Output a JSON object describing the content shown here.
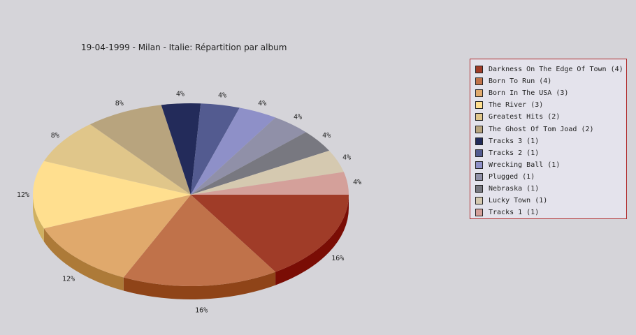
{
  "chart_data": {
    "type": "pie",
    "title": "19-04-1999 - Milan - Italie:  Répartition par album",
    "slices": [
      {
        "label": "Darkness On The Edge Of Town",
        "value": 4,
        "percent_label": "16%",
        "color": "#a03c28",
        "side_color": "#7a0d05"
      },
      {
        "label": "Born To Run",
        "value": 4,
        "percent_label": "16%",
        "color": "#c0724a",
        "side_color": "#8f4418"
      },
      {
        "label": "Born In The USA",
        "value": 3,
        "percent_label": "12%",
        "color": "#e0a96c",
        "side_color": "#ad7a38"
      },
      {
        "label": "The River",
        "value": 3,
        "percent_label": "12%",
        "color": "#ffdf8f",
        "side_color": "#d0b060"
      },
      {
        "label": "Greatest Hits",
        "value": 2,
        "percent_label": "8%",
        "color": "#e0c68a",
        "side_color": "#b09a60"
      },
      {
        "label": "The Ghost Of Tom Joad",
        "value": 2,
        "percent_label": "8%",
        "color": "#b8a47e",
        "side_color": "#8c7a58"
      },
      {
        "label": "Tracks 3",
        "value": 1,
        "percent_label": "4%",
        "color": "#232b5a",
        "side_color": "#141838"
      },
      {
        "label": "Tracks 2",
        "value": 1,
        "percent_label": "4%",
        "color": "#535b90",
        "side_color": "#363c66"
      },
      {
        "label": "Wrecking Ball",
        "value": 1,
        "percent_label": "4%",
        "color": "#8e90c8",
        "side_color": "#62649a"
      },
      {
        "label": "Plugged",
        "value": 1,
        "percent_label": "4%",
        "color": "#9090a8",
        "side_color": "#66667c"
      },
      {
        "label": "Nebraska",
        "value": 1,
        "percent_label": "4%",
        "color": "#787880",
        "side_color": "#55555c"
      },
      {
        "label": "Lucky Town",
        "value": 1,
        "percent_label": "4%",
        "color": "#d5c9b0",
        "side_color": "#a89c84"
      },
      {
        "label": "Tracks 1",
        "value": 1,
        "percent_label": "4%",
        "color": "#d4a09a",
        "side_color": "#a87470"
      }
    ],
    "legend": {
      "placement": "right",
      "entries": [
        "Darkness On The Edge Of Town (4)",
        "Born To Run (4)",
        "Born In The USA (3)",
        "The River (3)",
        "Greatest Hits (2)",
        "The Ghost Of Tom Joad (2)",
        "Tracks 3 (1)",
        "Tracks 2 (1)",
        "Wrecking Ball (1)",
        "Plugged (1)",
        "Nebraska (1)",
        "Lucky Town (1)",
        "Tracks 1 (1)"
      ]
    }
  }
}
